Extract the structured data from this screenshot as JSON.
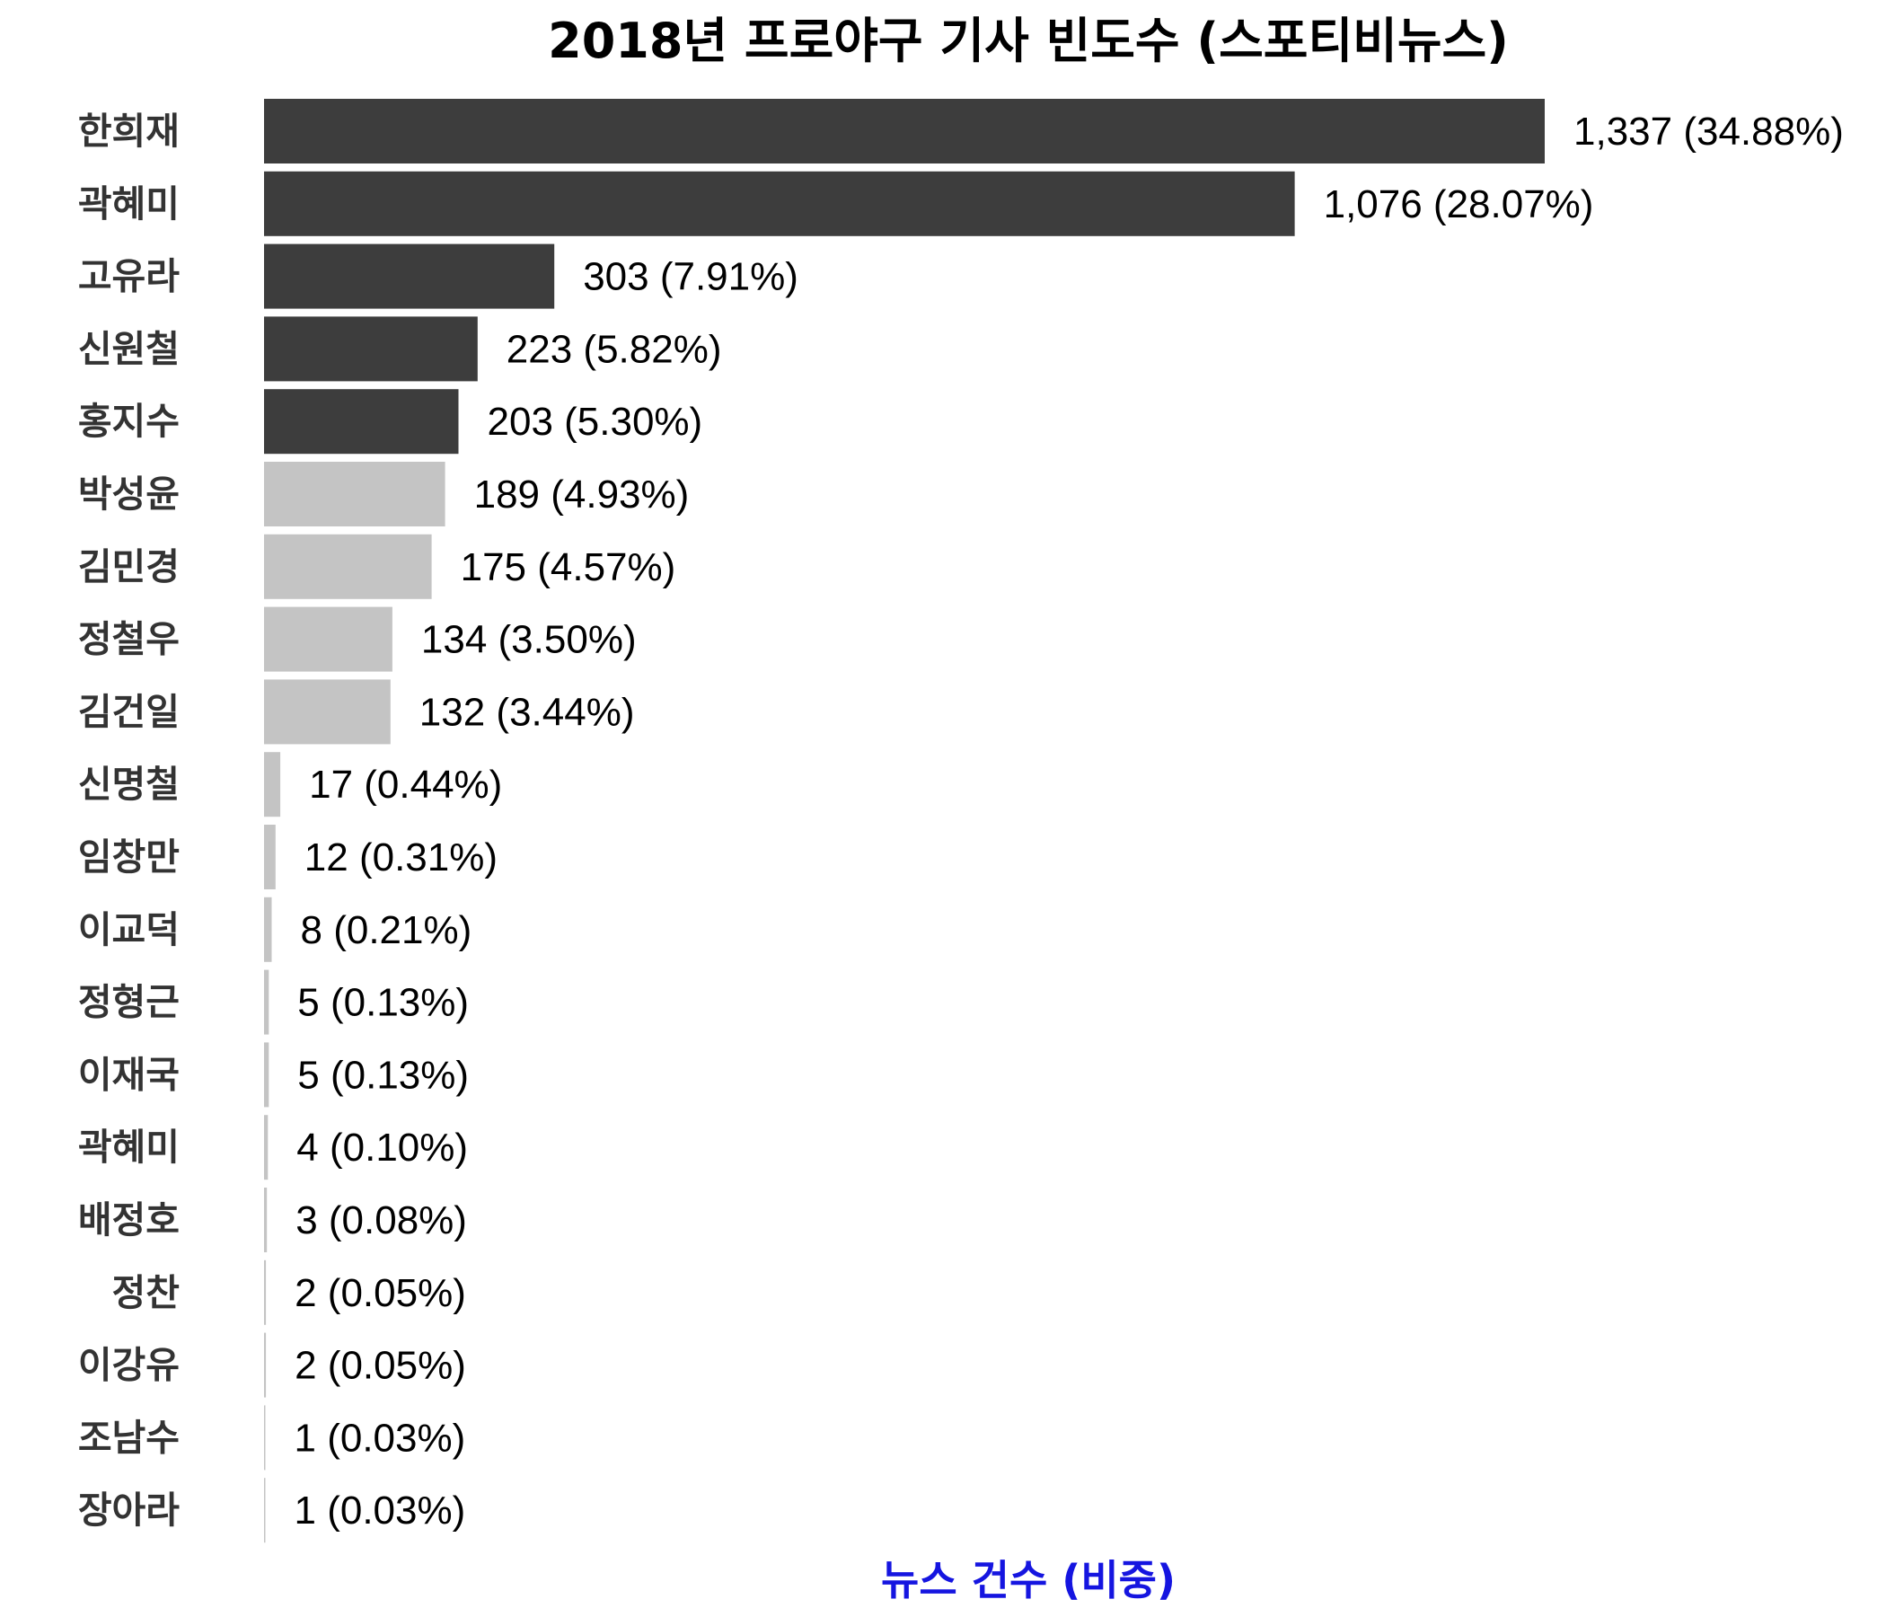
{
  "chart_data": {
    "type": "bar",
    "orientation": "horizontal",
    "title": "2018년 프로야구 기사 빈도수 (스포티비뉴스)",
    "xlabel": "뉴스 건수 (비중)",
    "ylabel": "",
    "xlim": [
      0,
      1337
    ],
    "grid": false,
    "legend": "none",
    "colors": {
      "highlight": "#3d3d3d",
      "normal": "#c4c4c4",
      "xlabel": "#1515e0"
    },
    "highlight_top": 5,
    "categories": [
      "한희재",
      "곽혜미",
      "고유라",
      "신원철",
      "홍지수",
      "박성윤",
      "김민경",
      "정철우",
      "김건일",
      "신명철",
      "임창만",
      "이교덕",
      "정형근",
      "이재국",
      "곽혜미",
      "배정호",
      "정찬",
      "이강유",
      "조남수",
      "장아라"
    ],
    "values": [
      1337,
      1076,
      303,
      223,
      203,
      189,
      175,
      134,
      132,
      17,
      12,
      8,
      5,
      5,
      4,
      3,
      2,
      2,
      1,
      1
    ],
    "value_labels": [
      "1,337 (34.88%)",
      "1,076 (28.07%)",
      "303 (7.91%)",
      "223 (5.82%)",
      "203 (5.30%)",
      "189 (4.93%)",
      "175 (4.57%)",
      "134 (3.50%)",
      "132 (3.44%)",
      "17 (0.44%)",
      "12 (0.31%)",
      "8 (0.21%)",
      "5 (0.13%)",
      "5 (0.13%)",
      "4 (0.10%)",
      "3 (0.08%)",
      "2 (0.05%)",
      "2 (0.05%)",
      "1 (0.03%)",
      "1 (0.03%)"
    ]
  }
}
